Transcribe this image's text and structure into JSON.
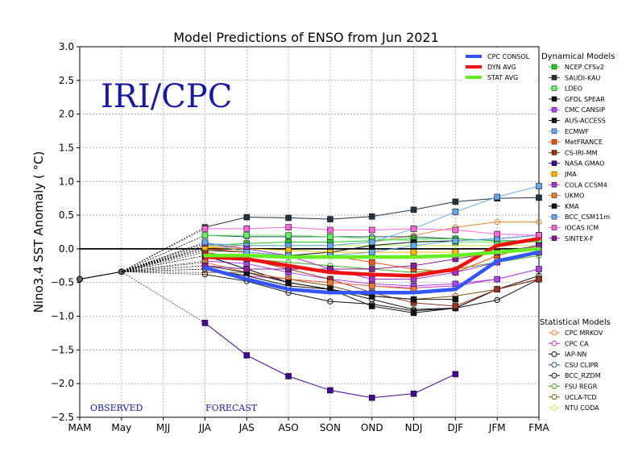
{
  "chart_data": {
    "type": "line",
    "title": "Model Predictions of ENSO from Jun 2021",
    "ylabel": "Nino3.4 SST Anomaly ( °C)",
    "xlabel": "",
    "brand": "IRI/CPC",
    "observed_label": "OBSERVED",
    "forecast_label": "FORECAST",
    "categories": [
      "MAM",
      "May",
      "MJJ",
      "JJA",
      "JAS",
      "ASO",
      "SON",
      "OND",
      "NDJ",
      "DJF",
      "JFM",
      "FMA"
    ],
    "ylim": [
      -2.5,
      3.0
    ],
    "yticks": [
      -2.5,
      -2.0,
      -1.5,
      -1.0,
      -0.5,
      0.0,
      0.5,
      1.0,
      1.5,
      2.0,
      2.5,
      3.0
    ],
    "ytick_labels": [
      "−2.5",
      "−2.0",
      "−1.5",
      "−1.0",
      "−0.5",
      "0.0",
      "0.5",
      "1.0",
      "1.5",
      "2.0",
      "2.5",
      "3.0"
    ],
    "grid": true,
    "observed": {
      "x": [
        0,
        1
      ],
      "values": [
        -0.45,
        -0.34
      ]
    },
    "summary_legend": [
      {
        "name": "CPC CONSOL",
        "color": "#3355ff"
      },
      {
        "name": "DYN AVG",
        "color": "#ee1111"
      },
      {
        "name": "STAT AVG",
        "color": "#66ee22"
      }
    ],
    "summary_series": [
      {
        "name": "CPC CONSOL",
        "color": "#3355ff",
        "start": 3,
        "values": [
          -0.28,
          -0.45,
          -0.6,
          -0.65,
          -0.65,
          -0.65,
          -0.6,
          -0.18,
          -0.05
        ]
      },
      {
        "name": "DYN AVG",
        "color": "#ee1111",
        "start": 3,
        "values": [
          -0.12,
          -0.15,
          -0.25,
          -0.35,
          -0.38,
          -0.4,
          -0.3,
          0.05,
          0.15
        ]
      },
      {
        "name": "STAT AVG",
        "color": "#66ee22",
        "start": 3,
        "values": [
          -0.1,
          -0.1,
          -0.12,
          -0.12,
          -0.12,
          -0.12,
          -0.1,
          -0.05,
          0.0
        ]
      }
    ],
    "dynamical_header": "Dynamical Models",
    "statistical_header": "Statistical Models",
    "dynamical_series": [
      {
        "name": "NCEP CFSv2",
        "color": "#22cc22",
        "marker": "square",
        "start": 3,
        "values": [
          0.05,
          0.08,
          0.1,
          0.1,
          0.12,
          0.15,
          0.15,
          0.12,
          0.1
        ]
      },
      {
        "name": "SAUDI-KAU",
        "color": "#223344",
        "marker": "square",
        "start": 3,
        "values": [
          0.32,
          0.47,
          0.46,
          0.44,
          0.48,
          0.58,
          0.7,
          0.75,
          0.76
        ]
      },
      {
        "name": "LDEO",
        "color": "#66ee66",
        "marker": "square",
        "start": 3,
        "values": [
          0.2,
          0.2,
          0.2,
          0.18,
          0.15,
          0.12,
          0.1,
          0.1,
          0.1
        ]
      },
      {
        "name": "GFDL SPEAR",
        "color": "#111111",
        "marker": "square",
        "start": 3,
        "values": [
          -0.02,
          -0.05,
          -0.1,
          -0.05,
          0.05,
          0.1,
          0.12,
          0.15,
          0.2
        ]
      },
      {
        "name": "CMC CANSIP",
        "color": "#aa44ee",
        "marker": "square",
        "start": 3,
        "values": [
          -0.18,
          -0.22,
          -0.35,
          -0.45,
          -0.52,
          -0.55,
          -0.52,
          -0.45,
          -0.3
        ]
      },
      {
        "name": "AUS-ACCESS",
        "color": "#111111",
        "marker": "square",
        "start": 3,
        "values": [
          -0.1,
          -0.3,
          -0.5,
          -0.6,
          -0.85,
          -0.95,
          -0.88,
          -0.6,
          -0.45
        ]
      },
      {
        "name": "ECMWF",
        "color": "#66aaee",
        "marker": "square",
        "start": 3,
        "values": [
          0.08,
          0.05,
          0.05,
          0.05,
          0.1,
          0.3,
          0.55,
          0.77,
          0.93
        ]
      },
      {
        "name": "MetFRANCE",
        "color": "#ee5511",
        "marker": "square",
        "start": 3,
        "values": [
          0.0,
          -0.05,
          -0.1,
          -0.1,
          -0.2,
          -0.3,
          -0.35,
          -0.1,
          0.05
        ]
      },
      {
        "name": "CS-IRI-MM",
        "color": "#993322",
        "marker": "square",
        "start": 3,
        "values": [
          -0.05,
          -0.15,
          -0.3,
          -0.45,
          -0.65,
          -0.8,
          -0.85,
          -0.6,
          -0.45
        ]
      },
      {
        "name": "NASA GMAO",
        "color": "#440099",
        "marker": "square",
        "start": 3,
        "values": [
          -1.1,
          -1.58,
          -1.89,
          -2.1,
          -2.21,
          -2.15,
          -1.86
        ]
      },
      {
        "name": "JMA",
        "color": "#ffbb00",
        "marker": "square",
        "start": 3,
        "values": [
          0.02,
          0.0,
          -0.02,
          -0.05,
          -0.05,
          -0.05,
          -0.05
        ]
      },
      {
        "name": "COLA CCSM4",
        "color": "#aa33cc",
        "marker": "square",
        "start": 3,
        "values": [
          0.08,
          0.0,
          -0.1,
          -0.3,
          -0.45,
          -0.45,
          -0.35,
          -0.2,
          -0.05
        ]
      },
      {
        "name": "UKMO",
        "color": "#ee7733",
        "marker": "square",
        "start": 3,
        "values": [
          -0.2,
          -0.35,
          -0.45,
          -0.5,
          -0.55,
          -0.6
        ]
      },
      {
        "name": "KMA",
        "color": "#111111",
        "marker": "square",
        "start": 3,
        "values": [
          -0.25,
          -0.35,
          -0.5,
          -0.6,
          -0.7,
          -0.75,
          -0.75
        ]
      },
      {
        "name": "BCC_CSM11m",
        "color": "#66aaee",
        "marker": "square",
        "start": 3,
        "values": [
          0.1,
          -0.05,
          -0.1,
          -0.1,
          -0.05,
          0.05,
          0.12,
          0.15,
          0.2
        ]
      },
      {
        "name": "IOCAS ICM",
        "color": "#ff66dd",
        "marker": "square",
        "start": 3,
        "values": [
          0.3,
          0.3,
          0.32,
          0.28,
          0.28,
          0.3,
          0.28,
          0.22,
          0.2
        ]
      },
      {
        "name": "SINTEX-F",
        "color": "#882299",
        "marker": "square",
        "start": 3,
        "values": [
          -0.25,
          -0.3,
          -0.3,
          -0.3,
          -0.3,
          -0.25,
          -0.15,
          -0.05,
          0.05
        ]
      }
    ],
    "statistical_series": [
      {
        "name": "CPC MRKOV",
        "color": "#dd8833",
        "marker": "circle",
        "start": 3,
        "values": [
          0.02,
          0.05,
          0.05,
          0.05,
          0.1,
          0.2,
          0.32,
          0.4,
          0.4
        ]
      },
      {
        "name": "CPC CA",
        "color": "#cc33cc",
        "marker": "circle",
        "start": 3,
        "values": [
          -0.3,
          -0.4,
          -0.45,
          -0.5,
          -0.55,
          -0.58,
          -0.55,
          -0.45,
          -0.3
        ]
      },
      {
        "name": "IAP-NN",
        "color": "#111111",
        "marker": "circle",
        "start": 3,
        "values": [
          -0.38,
          -0.48,
          -0.65,
          -0.78,
          -0.82,
          -0.92,
          -0.88,
          -0.76,
          -0.45
        ]
      },
      {
        "name": "CSU CLIPR",
        "color": "#225566",
        "marker": "circle",
        "start": 3,
        "values": [
          0.2,
          0.18,
          0.18,
          0.18,
          0.18,
          0.18,
          0.15,
          0.12,
          0.12
        ]
      },
      {
        "name": "BCC_RZDM",
        "color": "#111111",
        "marker": "circle",
        "start": 3,
        "values": [
          -0.3,
          -0.4,
          -0.55,
          -0.6,
          -0.75,
          -0.9,
          -0.88,
          -0.6,
          -0.4
        ]
      },
      {
        "name": "FSU REGR",
        "color": "#44aa22",
        "marker": "circle",
        "start": 3,
        "values": [
          -0.1,
          -0.15,
          -0.2,
          -0.25,
          -0.3,
          -0.35,
          -0.3,
          -0.2,
          -0.1
        ]
      },
      {
        "name": "UCLA-TCD",
        "color": "#775511",
        "marker": "circle",
        "start": 3,
        "values": [
          -0.35,
          -0.35,
          -0.45,
          -0.55,
          -0.7,
          -0.75,
          -0.7,
          -0.6,
          -0.45
        ]
      },
      {
        "name": "NTU CODA",
        "color": "#bbee55",
        "marker": "circle",
        "start": 3,
        "values": [
          0.05,
          0.05,
          0.05,
          0.05,
          0.05,
          0.05,
          0.05,
          0.05,
          0.05
        ]
      }
    ]
  }
}
